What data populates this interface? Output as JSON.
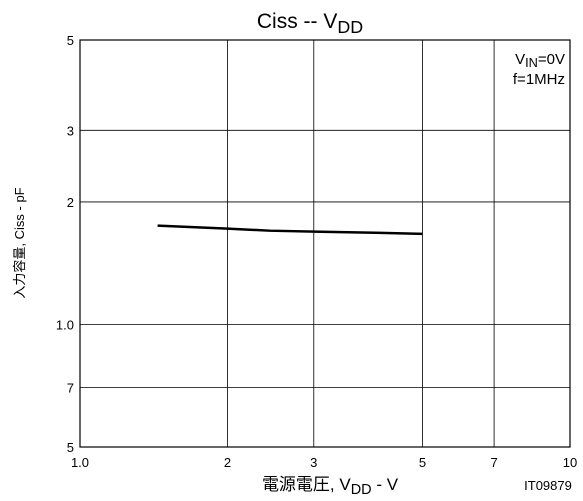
{
  "chart_data": {
    "type": "line",
    "title": [
      "Ciss -- V",
      "DD"
    ],
    "xlabel": [
      "電源電圧, V",
      "DD",
      " - V"
    ],
    "ylabel": "入力容量, Ciss - pF",
    "annotations": [
      [
        "V",
        "IN",
        "=0V"
      ],
      [
        "f=1MHz"
      ]
    ],
    "figure_id": "IT09879",
    "log_x": true,
    "log_y": true,
    "grid": true,
    "xlim": [
      1,
      10
    ],
    "xticks": [
      {
        "value": 1,
        "label": "1.0"
      },
      2,
      3,
      5,
      7,
      10
    ],
    "ylim": [
      0.5,
      5
    ],
    "yticks": [
      {
        "value": 0.5,
        "label": "5"
      },
      {
        "value": 0.7,
        "label": "7"
      },
      {
        "value": 1,
        "label": "1.0"
      },
      2,
      3,
      5
    ],
    "x": [
      1.44,
      2.0,
      2.44,
      3.1,
      4.0,
      5.0
    ],
    "series": [
      {
        "color": "#000000",
        "values": [
          1.75,
          1.72,
          1.7,
          1.69,
          1.68,
          1.67
        ]
      }
    ]
  }
}
